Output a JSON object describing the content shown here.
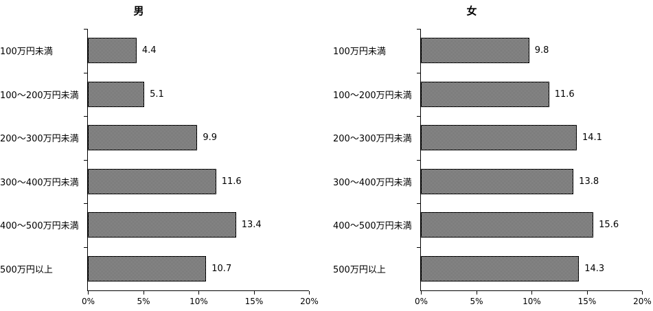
{
  "figure": {
    "background_color": "#ffffff",
    "bar_border_color": "#000000",
    "bar_fill_style": "checkerboard-dither",
    "axis_color": "#000000",
    "text_color": "#000000"
  },
  "chart_data": [
    {
      "type": "bar",
      "orientation": "horizontal",
      "title": "男",
      "categories": [
        "100万円未満",
        "100～200万円未満",
        "200～300万円未満",
        "300～400万円未満",
        "400～500万円未満",
        "500万円以上"
      ],
      "values": [
        4.4,
        5.1,
        9.9,
        11.6,
        13.4,
        10.7
      ],
      "value_labels": [
        "4.4",
        "5.1",
        "9.9",
        "11.6",
        "13.4",
        "10.7"
      ],
      "x_ticks": [
        "0%",
        "5%",
        "10%",
        "15%",
        "20%"
      ],
      "xlim": [
        0,
        20
      ],
      "xlabel": "",
      "ylabel": "",
      "grid": false,
      "legend_position": "none"
    },
    {
      "type": "bar",
      "orientation": "horizontal",
      "title": "女",
      "categories": [
        "100万円未満",
        "100～200万円未満",
        "200～300万円未満",
        "300～400万円未満",
        "400～500万円未満",
        "500万円以上"
      ],
      "values": [
        9.8,
        11.6,
        14.1,
        13.8,
        15.6,
        14.3
      ],
      "value_labels": [
        "9.8",
        "11.6",
        "14.1",
        "13.8",
        "15.6",
        "14.3"
      ],
      "x_ticks": [
        "0%",
        "5%",
        "10%",
        "15%",
        "20%"
      ],
      "xlim": [
        0,
        20
      ],
      "xlabel": "",
      "ylabel": "",
      "grid": false,
      "legend_position": "none"
    }
  ]
}
